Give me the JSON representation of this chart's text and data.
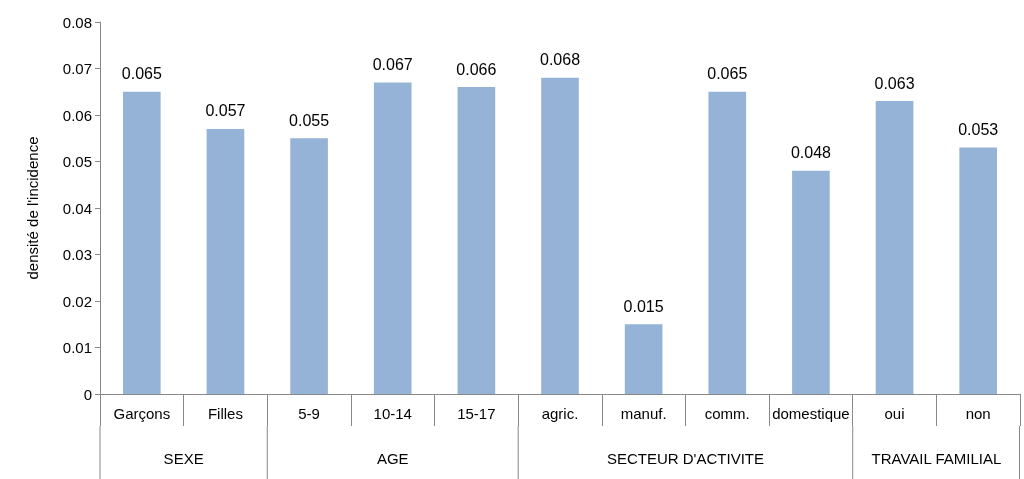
{
  "chart_data": {
    "type": "bar",
    "ylabel": "densité de l'incidence",
    "categories": [
      "Garçons",
      "Filles",
      "5-9",
      "10-14",
      "15-17",
      "agric.",
      "manuf.",
      "comm.",
      "domestique",
      "oui",
      "non"
    ],
    "values": [
      0.065,
      0.057,
      0.055,
      0.067,
      0.066,
      0.068,
      0.015,
      0.065,
      0.048,
      0.063,
      0.053
    ],
    "color": "#95b3d7",
    "data_labels": true,
    "grid": false,
    "ylim": [
      0,
      0.08
    ],
    "yticks": [
      0,
      0.01,
      0.02,
      0.03,
      0.04,
      0.05,
      0.06,
      0.07,
      0.08
    ],
    "annotations": [
      "SEXE",
      "AGE",
      "SECTEUR D'ACTIVITE",
      "TRAVAIL FAMILIAL"
    ]
  }
}
